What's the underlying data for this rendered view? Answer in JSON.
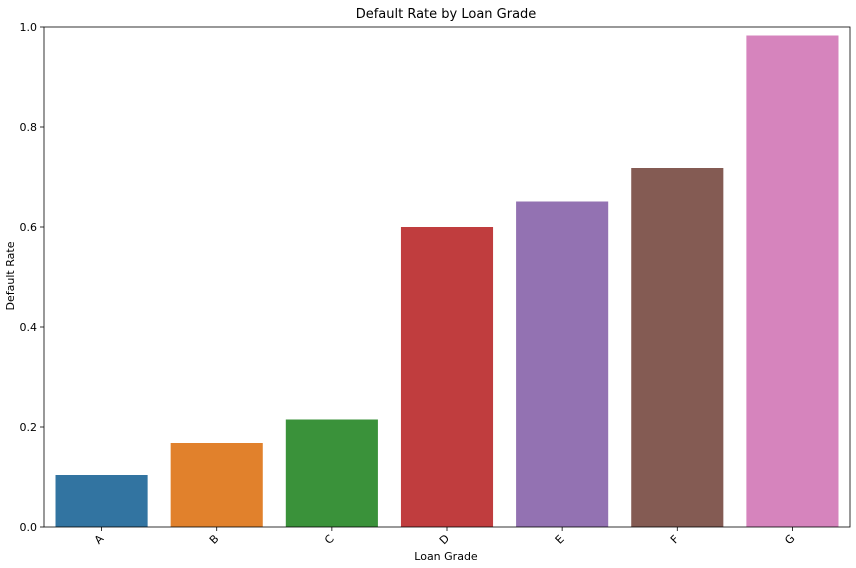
{
  "chart_data": {
    "type": "bar",
    "title": "Default Rate by Loan Grade",
    "xlabel": "Loan Grade",
    "ylabel": "Default Rate",
    "categories": [
      "A",
      "B",
      "C",
      "D",
      "E",
      "F",
      "G"
    ],
    "values": [
      0.104,
      0.168,
      0.215,
      0.6,
      0.651,
      0.718,
      0.983
    ],
    "colors": [
      "#3274a1",
      "#e1812c",
      "#3a923a",
      "#c03d3e",
      "#9372b2",
      "#845b53",
      "#d684bd"
    ],
    "ylim": [
      0,
      1.0
    ],
    "yticks": [
      "0.0",
      "0.2",
      "0.4",
      "0.6",
      "0.8",
      "1.0"
    ],
    "grid": false,
    "legend": "none"
  }
}
